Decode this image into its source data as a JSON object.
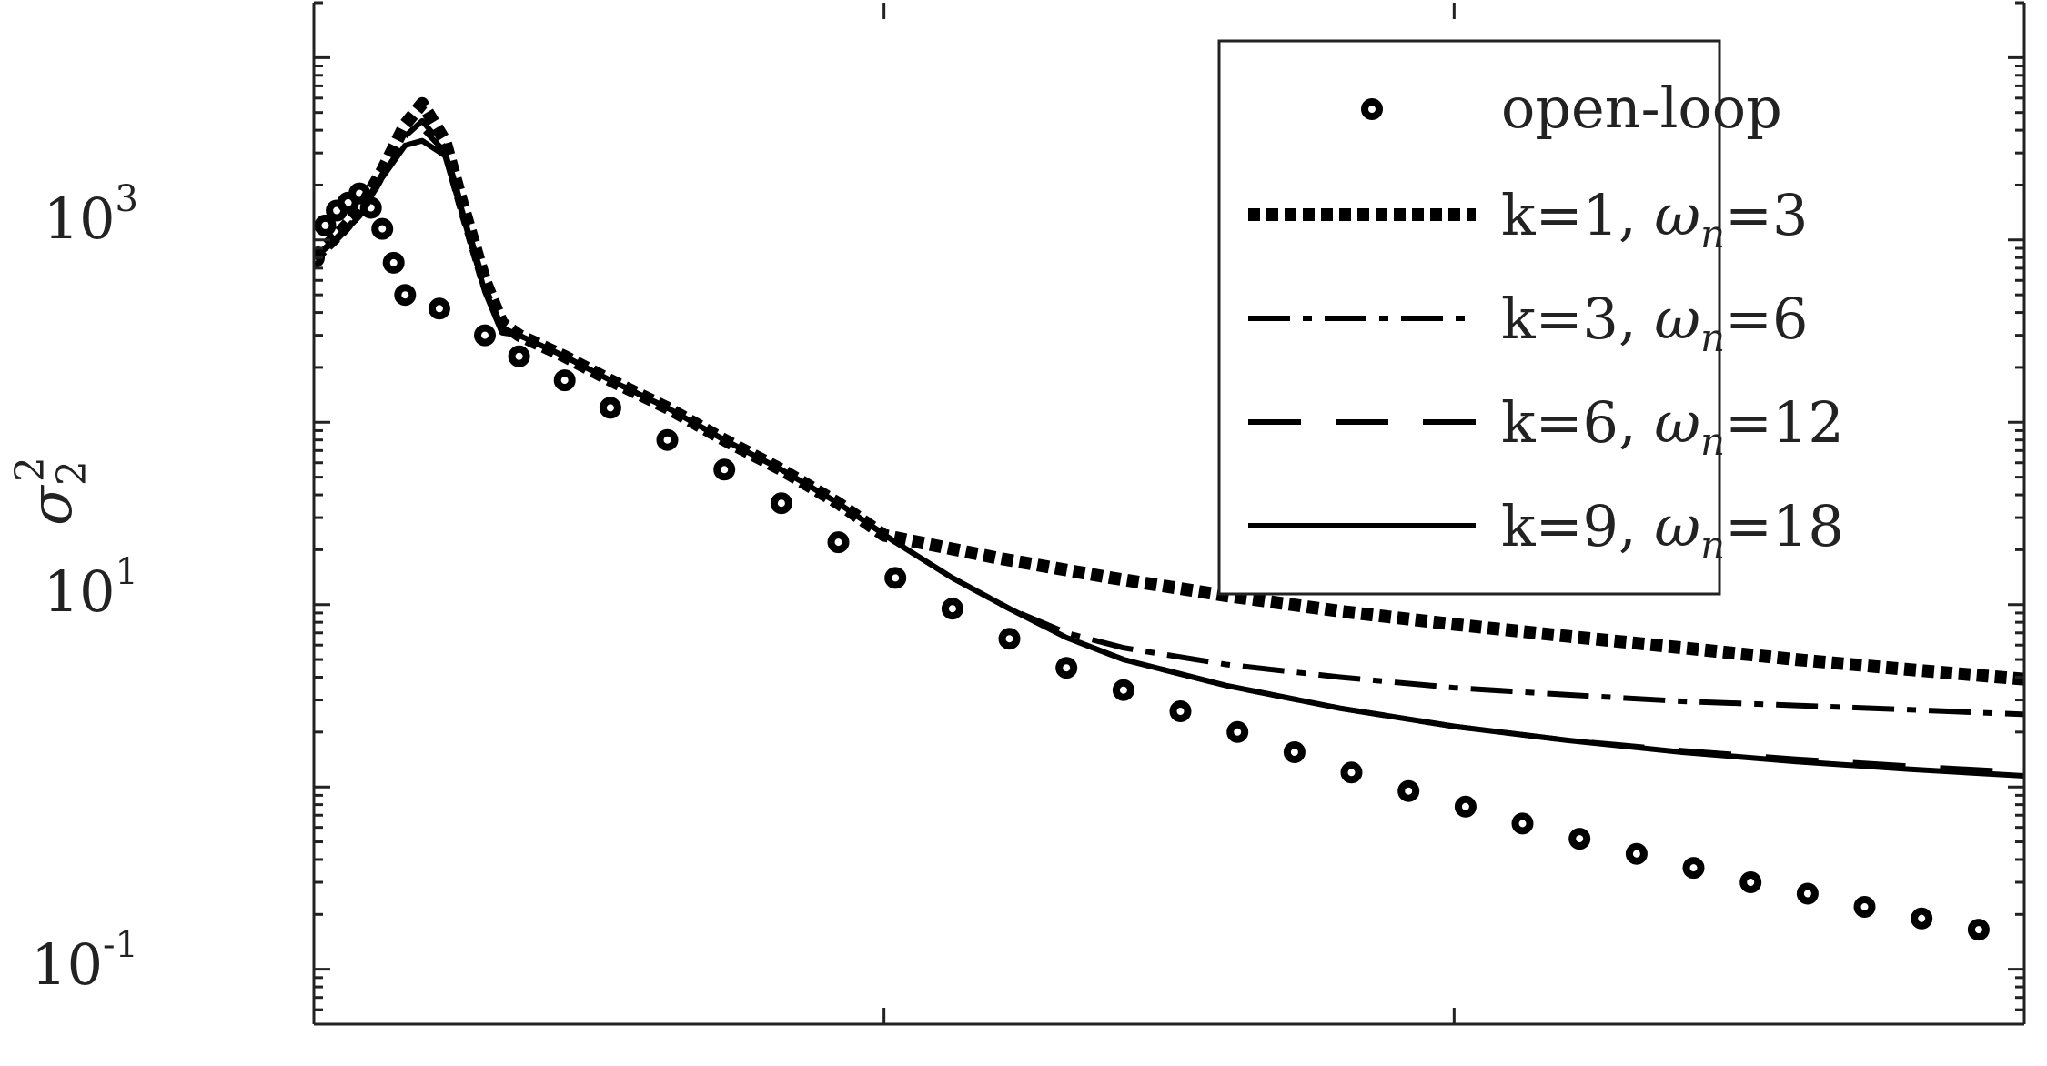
{
  "chart_data": {
    "type": "line",
    "title": "",
    "xlabel": "",
    "ylabel": "σ",
    "ylabel_sup": "2",
    "ylabel_sub": "2",
    "yscale": "log",
    "xlim": [
      0,
      30
    ],
    "ylim": [
      0.05,
      20000
    ],
    "x_ticks": [
      0,
      10,
      20,
      30
    ],
    "x_tick_labels": [
      "",
      "",
      "",
      ""
    ],
    "y_ticks": [
      {
        "base": "10",
        "exp": "-1",
        "value": 0.1
      },
      {
        "base": "10",
        "exp": "1",
        "value": 10
      },
      {
        "base": "10",
        "exp": "3",
        "value": 1000
      }
    ],
    "grid": false,
    "legend_position": "top-right",
    "series": [
      {
        "name": "open-loop",
        "style": "circles",
        "color": "#000000",
        "x": [
          0,
          0.2,
          0.4,
          0.6,
          0.8,
          1.0,
          1.2,
          1.4,
          1.6,
          2.2,
          3,
          3.6,
          4.4,
          5.2,
          6.2,
          7.2,
          8.2,
          9.2,
          10.2,
          11.2,
          12.2,
          13.2,
          14.2,
          15.2,
          16.2,
          17.2,
          18.2,
          19.2,
          20.2,
          21.2,
          22.2,
          23.2,
          24.2,
          25.2,
          26.2,
          27.2,
          28.2,
          29.2
        ],
        "y": [
          800,
          1200,
          1450,
          1600,
          1800,
          1500,
          1150,
          750,
          500,
          420,
          300,
          230,
          170,
          120,
          80,
          55,
          36,
          22,
          14,
          9.5,
          6.5,
          4.5,
          3.4,
          2.6,
          2.0,
          1.55,
          1.2,
          0.95,
          0.78,
          0.63,
          0.52,
          0.43,
          0.36,
          0.3,
          0.26,
          0.22,
          0.19,
          0.165
        ]
      },
      {
        "name": "k=1, ω_n=3",
        "style": "dotted",
        "color": "#000000",
        "x": [
          0,
          0.4,
          0.8,
          1.2,
          1.6,
          1.9,
          2.3,
          2.6,
          3.0,
          3.3,
          3.6,
          4.4,
          5.2,
          6.2,
          7.2,
          8.2,
          9.2,
          10,
          12,
          14,
          16,
          18,
          20,
          22,
          24,
          26,
          28,
          30
        ],
        "y": [
          800,
          1050,
          1450,
          2400,
          4300,
          5600,
          3500,
          1600,
          600,
          350,
          300,
          230,
          170,
          120,
          80,
          55,
          36,
          24,
          18,
          14,
          11.2,
          9.2,
          7.8,
          6.7,
          5.8,
          5.0,
          4.4,
          3.9
        ]
      },
      {
        "name": "k=3, ω_n=6",
        "style": "dashdot",
        "color": "#000000",
        "x": [
          0,
          0.4,
          0.8,
          1.2,
          1.6,
          1.9,
          2.3,
          2.6,
          3.0,
          3.3,
          3.6,
          4.4,
          5.2,
          6.2,
          7.2,
          8.2,
          9.2,
          10.2,
          11.2,
          12.2,
          13.2,
          14.2,
          16,
          18,
          20,
          22,
          24,
          26,
          28,
          30
        ],
        "y": [
          800,
          1030,
          1400,
          2300,
          3700,
          4500,
          3200,
          1500,
          560,
          330,
          300,
          230,
          170,
          120,
          80,
          55,
          36,
          22,
          14,
          9.5,
          7.0,
          5.8,
          4.7,
          4.0,
          3.5,
          3.2,
          2.95,
          2.8,
          2.65,
          2.5
        ]
      },
      {
        "name": "k=6, ω_n=12",
        "style": "dashed",
        "color": "#000000",
        "x": [
          0,
          0.4,
          0.8,
          1.2,
          1.6,
          1.9,
          2.3,
          2.6,
          3.0,
          3.3,
          3.6,
          4.4,
          5.2,
          6.2,
          7.2,
          8.2,
          9.2,
          10.2,
          11.2,
          12.2,
          13.2,
          14.2,
          16,
          18,
          20,
          22,
          24,
          26,
          28,
          30
        ],
        "y": [
          800,
          1020,
          1380,
          2250,
          3500,
          4100,
          3050,
          1450,
          540,
          320,
          300,
          230,
          170,
          120,
          80,
          55,
          36,
          22,
          14,
          9.5,
          6.6,
          5.0,
          3.6,
          2.7,
          2.15,
          1.8,
          1.58,
          1.42,
          1.3,
          1.2
        ]
      },
      {
        "name": "k=9, ω_n=18",
        "style": "solid",
        "color": "#000000",
        "x": [
          0,
          0.4,
          0.8,
          1.2,
          1.6,
          1.9,
          2.3,
          2.6,
          3.0,
          3.3,
          3.6,
          4.4,
          5.2,
          6.2,
          7.2,
          8.2,
          9.2,
          10.2,
          11.2,
          12.2,
          13.2,
          14.2,
          16,
          18,
          20,
          22,
          24,
          26,
          28,
          30
        ],
        "y": [
          800,
          1000,
          1350,
          2200,
          3300,
          3500,
          2900,
          1400,
          520,
          310,
          300,
          230,
          170,
          120,
          80,
          55,
          36,
          22,
          14,
          9.5,
          6.6,
          5.0,
          3.6,
          2.7,
          2.15,
          1.8,
          1.55,
          1.38,
          1.25,
          1.15
        ]
      }
    ],
    "legend": [
      {
        "key": "open-loop",
        "text": "open-loop",
        "style": "circles"
      },
      {
        "key": "k1",
        "pre": "k=1, ",
        "omega": "ω",
        "sub": "n",
        "post": "=3",
        "style": "dotted"
      },
      {
        "key": "k3",
        "pre": "k=3, ",
        "omega": "ω",
        "sub": "n",
        "post": "=6",
        "style": "dashdot"
      },
      {
        "key": "k6",
        "pre": "k=6, ",
        "omega": "ω",
        "sub": "n",
        "post": "=12",
        "style": "dashed"
      },
      {
        "key": "k9",
        "pre": "k=9, ",
        "omega": "ω",
        "sub": "n",
        "post": "=18",
        "style": "solid"
      }
    ]
  }
}
